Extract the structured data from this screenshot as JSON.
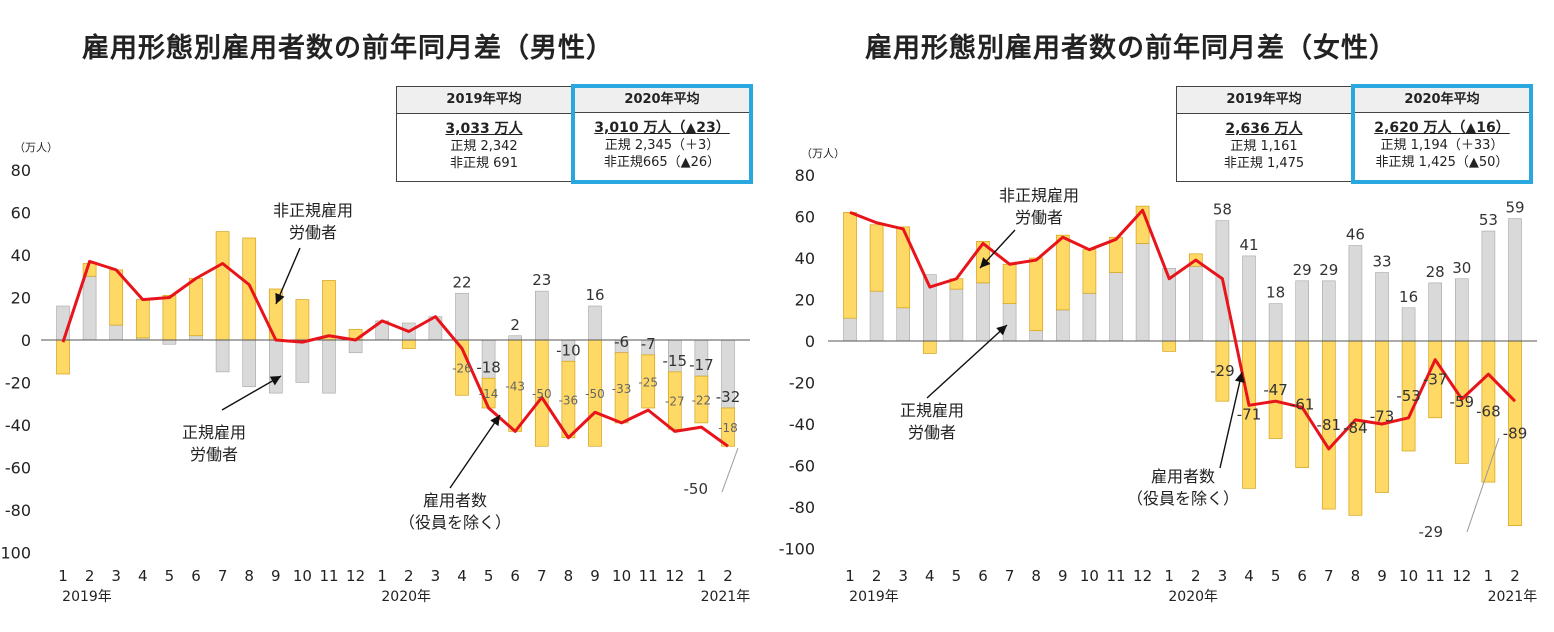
{
  "chart_data": [
    {
      "type": "bar",
      "title": "雇用形態別雇用者数の前年同月差（男性）",
      "unit_label": "（万人）",
      "ylim": [
        -100,
        80
      ],
      "yticks": [
        "80",
        "60",
        "40",
        "20",
        "0",
        "-20",
        "-40",
        "-60",
        "-80",
        "-100"
      ],
      "months": [
        "1",
        "2",
        "3",
        "4",
        "5",
        "6",
        "7",
        "8",
        "9",
        "10",
        "11",
        "12",
        "1",
        "2",
        "3",
        "4",
        "5",
        "6",
        "7",
        "8",
        "9",
        "10",
        "11",
        "12",
        "1",
        "2"
      ],
      "year_labels": [
        {
          "index": 0,
          "label": "2019年"
        },
        {
          "index": 12,
          "label": "2020年"
        },
        {
          "index": 24,
          "label": "2021年"
        }
      ],
      "regular": [
        16,
        30,
        7,
        1,
        -2,
        2,
        -15,
        -22,
        -25,
        -20,
        -25,
        -6,
        9,
        8,
        11,
        22,
        -18,
        2,
        23,
        -10,
        16,
        -6,
        -7,
        -15,
        -17,
        -32
      ],
      "nonregular": [
        -16,
        6,
        26,
        18,
        21,
        27,
        51,
        48,
        24,
        19,
        28,
        5,
        0,
        -4,
        0,
        -26,
        -14,
        -43,
        -50,
        -36,
        -50,
        -33,
        -25,
        -27,
        -22,
        -18
      ],
      "employees": [
        -1,
        37,
        33,
        19,
        20,
        29,
        36,
        26,
        0,
        -1,
        2,
        0,
        9,
        4,
        11,
        -4,
        -32,
        -43,
        -27,
        -46,
        -34,
        -39,
        -33,
        -43,
        -41,
        -50
      ],
      "labels_regular": [
        "",
        "",
        "",
        "",
        "",
        "",
        "",
        "",
        "",
        "",
        "",
        "",
        "",
        "",
        "",
        "22",
        "-18",
        "2",
        "23",
        "-10",
        "16",
        "-6",
        "-7",
        "-15",
        "-17",
        "-32"
      ],
      "labels_nonregular": [
        "",
        "",
        "",
        "",
        "",
        "",
        "",
        "",
        "",
        "",
        "",
        "",
        "",
        "",
        "",
        "-26",
        "-14",
        "-43",
        "-50",
        "-36",
        "-50",
        "-33",
        "-25",
        "-27",
        "-22",
        "-18"
      ],
      "employees_last_label": "-50",
      "annotations": {
        "nonregular": [
          "非正規雇用",
          "労働者"
        ],
        "regular": [
          "正規雇用",
          "労働者"
        ],
        "employees": [
          "雇用者数",
          "（役員を除く）"
        ]
      },
      "summary": {
        "y2019": {
          "header": "2019年平均",
          "total": "3,033 万人",
          "line1": "正規 2,342",
          "line2": "非正規 691"
        },
        "y2020": {
          "header": "2020年平均",
          "total": "3,010 万人（▲23）",
          "line1": "正規 2,345（＋3）",
          "line2": "非正規665（▲26）"
        }
      }
    },
    {
      "type": "bar",
      "title": "雇用形態別雇用者数の前年同月差（女性）",
      "unit_label": "（万人）",
      "ylim": [
        -100,
        80
      ],
      "yticks": [
        "80",
        "60",
        "40",
        "20",
        "0",
        "-20",
        "-40",
        "-60",
        "-80",
        "-100"
      ],
      "months": [
        "1",
        "2",
        "3",
        "4",
        "5",
        "6",
        "7",
        "8",
        "9",
        "10",
        "11",
        "12",
        "1",
        "2",
        "3",
        "4",
        "5",
        "6",
        "7",
        "8",
        "9",
        "10",
        "11",
        "12",
        "1",
        "2"
      ],
      "year_labels": [
        {
          "index": 0,
          "label": "2019年"
        },
        {
          "index": 12,
          "label": "2020年"
        },
        {
          "index": 24,
          "label": "2021年"
        }
      ],
      "regular": [
        11,
        24,
        16,
        32,
        25,
        28,
        18,
        5,
        15,
        23,
        33,
        47,
        35,
        36,
        58,
        41,
        18,
        29,
        29,
        46,
        33,
        16,
        28,
        30,
        53,
        59
      ],
      "nonregular": [
        51,
        32,
        39,
        -6,
        5,
        20,
        19,
        35,
        36,
        21,
        17,
        18,
        -5,
        6,
        -29,
        -71,
        -47,
        -61,
        -81,
        -84,
        -73,
        -53,
        -37,
        -59,
        -68,
        -89
      ],
      "employees": [
        62,
        57,
        54,
        26,
        30,
        47,
        37,
        39,
        50,
        44,
        49,
        63,
        30,
        39,
        30,
        -31,
        -29,
        -32,
        -52,
        -38,
        -40,
        -37,
        -9,
        -28,
        -16,
        -29
      ],
      "labels_regular": [
        "",
        "",
        "",
        "",
        "",
        "",
        "",
        "",
        "",
        "",
        "",
        "",
        "",
        "",
        "58",
        "41",
        "18",
        "29",
        "29",
        "46",
        "33",
        "16",
        "28",
        "30",
        "53",
        "59"
      ],
      "labels_nonregular": [
        "",
        "",
        "",
        "",
        "",
        "",
        "",
        "",
        "",
        "",
        "",
        "",
        "",
        "",
        "-29",
        "-71",
        "-47",
        "-61",
        "-81",
        "-84",
        "-73",
        "-53",
        "-37",
        "-59",
        "-68",
        "-89"
      ],
      "employees_last_label": "-29",
      "annotations": {
        "nonregular": [
          "非正規雇用",
          "労働者"
        ],
        "regular": [
          "正規雇用",
          "労働者"
        ],
        "employees": [
          "雇用者数",
          "（役員を除く）"
        ]
      },
      "summary": {
        "y2019": {
          "header": "2019年平均",
          "total": "2,636 万人",
          "line1": "正規 1,161",
          "line2": "非正規 1,475"
        },
        "y2020": {
          "header": "2020年平均",
          "total": "2,620 万人（▲16）",
          "line1": "正規 1,194（＋33）",
          "line2": "非正規 1,425（▲50）"
        }
      }
    }
  ],
  "colors": {
    "regular": "#d9d9d9",
    "regular_stroke": "#a6a6a6",
    "nonregular": "#ffd966",
    "nonregular_stroke": "#d4a017",
    "employees_line": "#e8141b",
    "summary_highlight": "#29a8e0"
  }
}
